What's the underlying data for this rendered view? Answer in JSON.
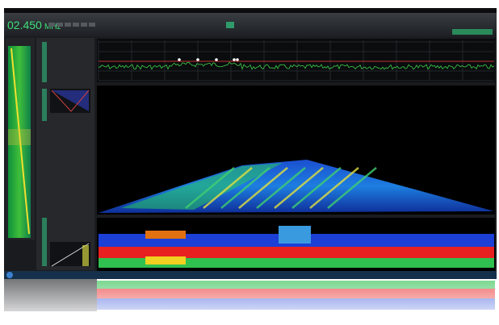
{
  "header": {
    "frequency": "02.450",
    "unit": "MHz"
  }
}
